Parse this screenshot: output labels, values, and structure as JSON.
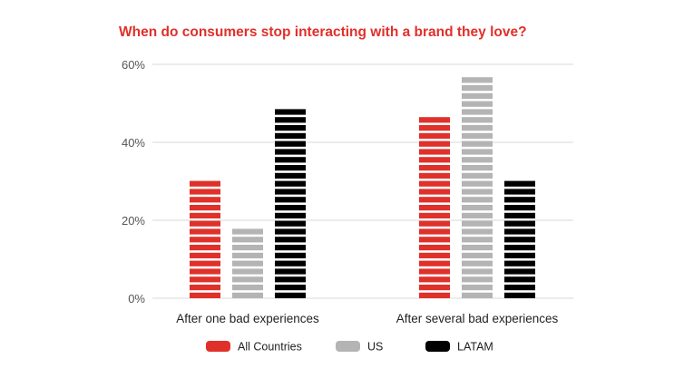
{
  "chart_data": {
    "type": "bar",
    "title": "When do consumers stop interacting with a brand they love?",
    "categories": [
      "After one bad experiences",
      "After several bad experiences"
    ],
    "series": [
      {
        "name": "All Countries",
        "values": [
          30,
          48
        ],
        "color": "#e0302a"
      },
      {
        "name": "US",
        "values": [
          18,
          58
        ],
        "color": "#b4b4b4"
      },
      {
        "name": "LATAM",
        "values": [
          50,
          32
        ],
        "color": "#000000"
      }
    ],
    "ylim": [
      0,
      60
    ],
    "yticks": [
      0,
      20,
      40,
      60
    ],
    "ytick_labels": [
      "0%",
      "20%",
      "40%",
      "60%"
    ],
    "xlabel": "",
    "ylabel": "",
    "grid": true,
    "legend_position": "bottom-center",
    "bar_style": "striped"
  }
}
